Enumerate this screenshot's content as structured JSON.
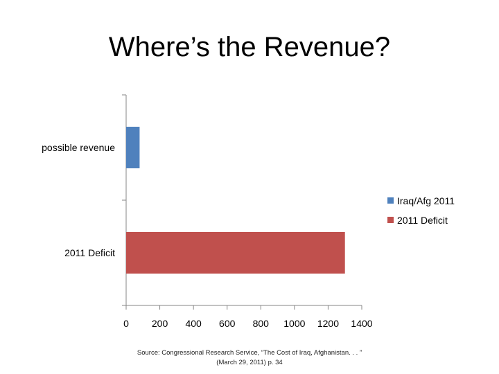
{
  "slide": {
    "title": "Where’s the Revenue?",
    "source_line1": "Source: Congressional Research Service, “The Cost of Iraq, Afghanistan. . . ”",
    "source_line2": "(March 29, 2011) p. 34"
  },
  "chart_data": {
    "type": "bar",
    "orientation": "horizontal",
    "title": "",
    "xlabel": "",
    "ylabel": "",
    "categories": [
      "possible revenue",
      "2011 Deficit"
    ],
    "series": [
      {
        "name": "Iraq/Afg 2011",
        "color": "#4f81bd",
        "values": [
          80,
          null
        ]
      },
      {
        "name": "2011 Deficit",
        "color": "#c0504d",
        "values": [
          null,
          1300
        ]
      }
    ],
    "xlim": [
      0,
      1400
    ],
    "xticks": [
      0,
      200,
      400,
      600,
      800,
      1000,
      1200,
      1400
    ],
    "grid": false,
    "legend_position": "right"
  }
}
